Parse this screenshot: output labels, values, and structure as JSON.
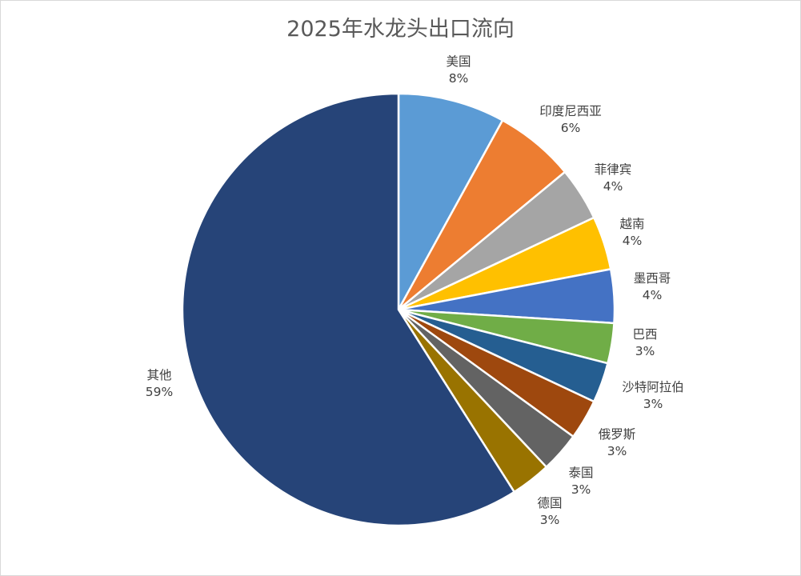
{
  "chart_data": {
    "type": "pie",
    "title": "2025年水龙头出口流向",
    "labels": [
      "美国",
      "印度尼西亚",
      "菲律宾",
      "越南",
      "墨西哥",
      "巴西",
      "沙特阿拉伯",
      "俄罗斯",
      "泰国",
      "德国",
      "其他"
    ],
    "values": [
      8,
      6,
      4,
      4,
      4,
      3,
      3,
      3,
      3,
      3,
      59
    ],
    "display_values": [
      "8%",
      "6%",
      "4%",
      "4%",
      "4%",
      "3%",
      "3%",
      "3%",
      "3%",
      "3%",
      "59%"
    ],
    "colors": [
      "#5b9bd5",
      "#ed7d31",
      "#a5a5a5",
      "#ffc000",
      "#4472c4",
      "#70ad47",
      "#255e91",
      "#9e480e",
      "#636363",
      "#997300",
      "#264478"
    ],
    "start_angle_deg": 0,
    "direction": "clockwise",
    "legend": "none",
    "data_labels": "outside"
  }
}
